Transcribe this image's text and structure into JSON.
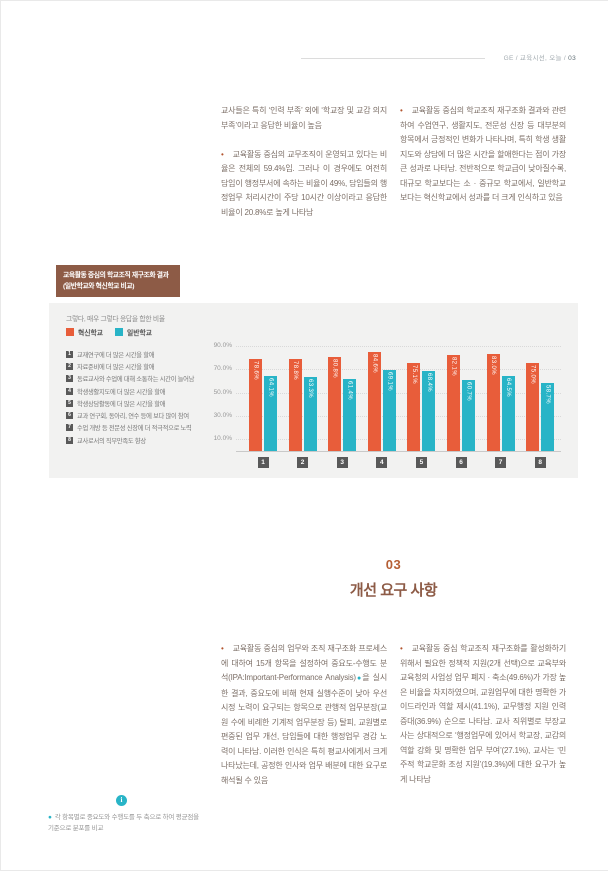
{
  "header": {
    "breadcrumb_left": "GE / 교육시선, 오늘 /",
    "page_number": "03"
  },
  "intro": {
    "left": {
      "para1": "교사들은 특히 ‘인력 부족’ 외에 ‘학교장 및 교감 의지 부족’이라고 응답한 비율이 높음",
      "bullet": "•",
      "para2": "교육활동 중심의 교무조직이 운영되고 있다는 비율은 전체의 59.4%임. 그러나 이 경우에도 여전히 담임이 행정부서에 속하는 비율이 49%, 담임들의 행정업무 처리시간이 주당 10시간 이상이라고 응답한 비율이 20.8%로 높게 나타남"
    },
    "right": {
      "bullet": "•",
      "para1": "교육활동 중심의 학교조직 재구조화 결과와 관련하여 수업연구, 생활지도, 전문성 신장 등 대부분의 항목에서 긍정적인 변화가 나타나며, 특히 학생 생활지도와 상담에 더 많은 시간을 할애한다는 점이 가장 큰 성과로 나타남. 전반적으로 학교급이 낮아질수록, 대규모 학교보다는 소 · 중규모 학교에서, 일반학교보다는 혁신학교에서 성과를 더 크게 인식하고 있음"
    }
  },
  "section03": {
    "number": "03",
    "title": "개선 요구 사항",
    "left": {
      "bullet": "•",
      "pre": "교육활동 중심의 업무와 조직 재구조화 프로세스에 대하여 15개 항목을 설정하여 중요도-수행도 분석(IPA:Important-Performance Analysis)",
      "marker": "●",
      "post": "을 실시한 결과, 중요도에 비해 현재 실행수준이 낮아 우선 시정 노력이 요구되는 항목으로 관행적 업무분장(교원 수에 비례한 기계적 업무분장 등) 탈피, 교원별로 편중된 업무 개선, 담임들에 대한 행정업무 경감 노력이 나타남. 이러한 인식은 특히 평교사에게서 크게 나타났는데, 공정한 인사와 업무 배분에 대한 요구로 해석될 수 있음"
    },
    "right": {
      "bullet": "•",
      "para": "교육활동 중심 학교조직 재구조화를 활성화하기 위해서 필요한 정책적 지원(2개 선택)으로 교육부와 교육청의 사업성 업무 폐지 · 축소(49.6%)가 가장 높은 비율을 차지하였으며, 교원업무에 대한 명확한 가이드라인과 역할 제시(41.1%), 교무행정 지원 인력 증대(36.9%) 순으로 나타남. 교사 직위별로 부장교사는 상대적으로 ‘행정업무에 있어서 학교장, 교감의 역할 강화 및 명확한 업무 부여’(27.1%), 교사는 ‘민주적 학교문화 조성 지원’(19.3%)에 대한 요구가 높게 나타남"
    }
  },
  "footnote": {
    "icon": "i",
    "bullet": "●",
    "text": "각 항목별로 중요도와 수행도를 두 축으로 하여 평균점을 기준으로 분포를 비교"
  },
  "chart_data": {
    "type": "bar",
    "title": "교육활동 중심의 학교조직 재구조화 결과 (일반학교와 혁신학교 비교)",
    "subtitle": "그렇다, 매우 그렇다 응답을 합한 비율",
    "categories": [
      "1",
      "2",
      "3",
      "4",
      "5",
      "6",
      "7",
      "8"
    ],
    "category_labels": [
      "교재연구에 더 많은 시간을 할애",
      "자료준비에 더 많은 시간을 할애",
      "동료교사와 수업에 대해 소통하는 시간이 늘어남",
      "학생생활지도에 더 많은 시간을 할애",
      "학생상담활동에 더 많은 시간을 할애",
      "교과 연구회, 동아리, 연수 등에 보다 많이 참여",
      "수업 개방 등 전문성 신장에 더 적극적으로 노력",
      "교사로서의 직무만족도 향상"
    ],
    "series": [
      {
        "name": "혁신학교",
        "color": "#e85d3a",
        "values": [
          78.6,
          78.8,
          80.8,
          84.6,
          75.1,
          82.1,
          83.0,
          75.0
        ]
      },
      {
        "name": "일반학교",
        "color": "#28b4c7",
        "values": [
          64.1,
          63.3,
          61.4,
          69.1,
          68.4,
          60.7,
          64.5,
          58.7
        ]
      }
    ],
    "yticks": [
      "90.0%",
      "70.0%",
      "50.0%",
      "30.0%",
      "10.0%"
    ],
    "ylim": [
      0,
      100
    ],
    "grid": true,
    "legend_position": "top-left",
    "value_label_format": "one-decimal-percent"
  }
}
